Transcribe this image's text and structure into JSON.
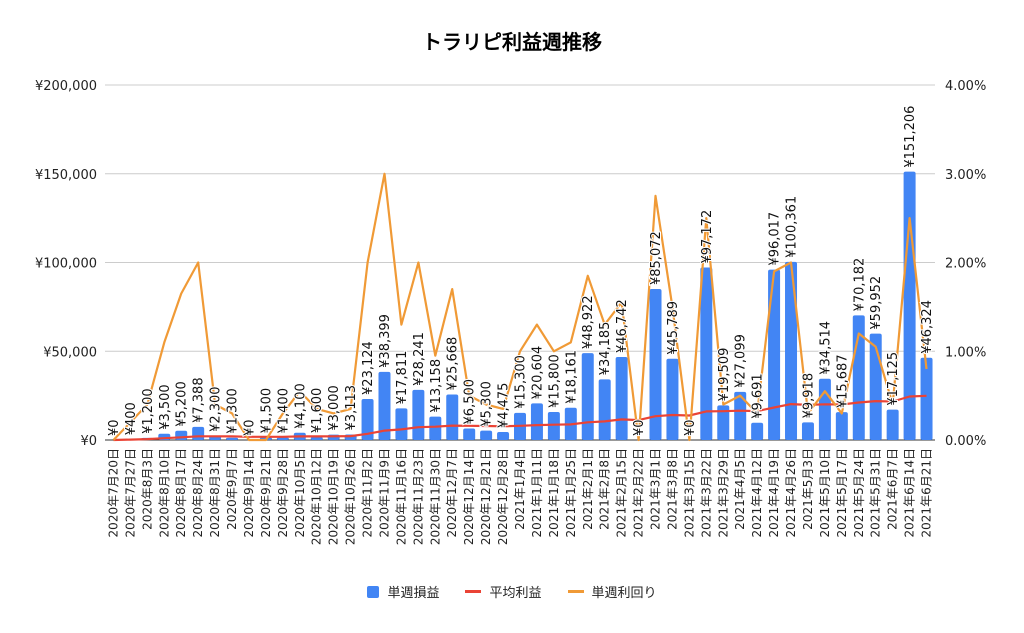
{
  "chart_data": {
    "type": "bar+line",
    "title": "トラリピ利益週推移",
    "categories": [
      "2020年7月20日",
      "2020年7月27日",
      "2020年8月3日",
      "2020年8月10日",
      "2020年8月17日",
      "2020年8月24日",
      "2020年8月31日",
      "2020年9月7日",
      "2020年9月14日",
      "2020年9月21日",
      "2020年9月28日",
      "2020年10月5日",
      "2020年10月12日",
      "2020年10月19日",
      "2020年10月26日",
      "2020年11月2日",
      "2020年11月9日",
      "2020年11月16日",
      "2020年11月23日",
      "2020年11月30日",
      "2020年12月7日",
      "2020年12月14日",
      "2020年12月21日",
      "2020年12月28日",
      "2021年1月4日",
      "2021年1月11日",
      "2021年1月18日",
      "2021年1月25日",
      "2021年2月1日",
      "2021年2月8日",
      "2021年2月15日",
      "2021年2月22日",
      "2021年3月1日",
      "2021年3月8日",
      "2021年3月15日",
      "2021年3月22日",
      "2021年3月29日",
      "2021年4月5日",
      "2021年4月12日",
      "2021年4月19日",
      "2021年4月26日",
      "2021年5月3日",
      "2021年5月10日",
      "2021年5月17日",
      "2021年5月24日",
      "2021年5月31日",
      "2021年6月7日",
      "2021年6月14日",
      "2021年6月21日"
    ],
    "series": [
      {
        "name": "単週損益",
        "type": "bar",
        "axis": "left",
        "color": "#4285f4",
        "values": [
          0,
          400,
          1200,
          3500,
          5200,
          7388,
          2300,
          1300,
          0,
          1500,
          1400,
          4100,
          1600,
          3000,
          3113,
          23124,
          38399,
          17811,
          28241,
          13158,
          25668,
          6500,
          5300,
          4475,
          15300,
          20604,
          15800,
          18161,
          48922,
          34185,
          46742,
          0,
          85072,
          45789,
          0,
          97172,
          19509,
          27099,
          9691,
          96017,
          100361,
          9918,
          34514,
          15687,
          70182,
          59952,
          17125,
          151206,
          46324
        ]
      },
      {
        "name": "平均利益",
        "type": "line",
        "axis": "left",
        "color": "#ea4335",
        "values": [
          0,
          200,
          500,
          1000,
          1500,
          2100,
          2100,
          2000,
          1800,
          1800,
          1800,
          2000,
          2000,
          2100,
          2200,
          3500,
          5300,
          6000,
          7200,
          7500,
          8100,
          8000,
          7900,
          7700,
          8000,
          8400,
          8600,
          8800,
          10000,
          10500,
          11600,
          11200,
          13400,
          14100,
          13800,
          16100,
          16200,
          16500,
          16300,
          18300,
          20200,
          19800,
          20100,
          20000,
          21100,
          21900,
          21700,
          24500,
          24900
        ]
      },
      {
        "name": "単週利回り",
        "type": "line",
        "axis": "right",
        "color": "#f09a36",
        "values": [
          0.0,
          0.2,
          0.4,
          1.1,
          1.65,
          2.0,
          0.4,
          0.3,
          0.0,
          0.0,
          0.3,
          0.55,
          0.35,
          0.3,
          0.35,
          2.0,
          3.0,
          1.3,
          2.0,
          0.95,
          1.7,
          0.5,
          0.4,
          0.35,
          1.0,
          1.3,
          1.0,
          1.1,
          1.85,
          1.3,
          1.55,
          0.0,
          2.75,
          1.5,
          0.0,
          2.5,
          0.4,
          0.5,
          0.3,
          1.9,
          2.0,
          0.3,
          0.55,
          0.3,
          1.2,
          1.05,
          0.4,
          2.5,
          0.8
        ]
      }
    ],
    "y_left": {
      "range": [
        0,
        200000
      ],
      "ticks": [
        "¥0",
        "¥50,000",
        "¥100,000",
        "¥150,000",
        "¥200,000"
      ]
    },
    "y_right": {
      "range": [
        0,
        4
      ],
      "unit": "%",
      "ticks": [
        "0.00%",
        "1.00%",
        "2.00%",
        "3.00%",
        "4.00%"
      ]
    },
    "grid": true,
    "legend_position": "bottom"
  }
}
